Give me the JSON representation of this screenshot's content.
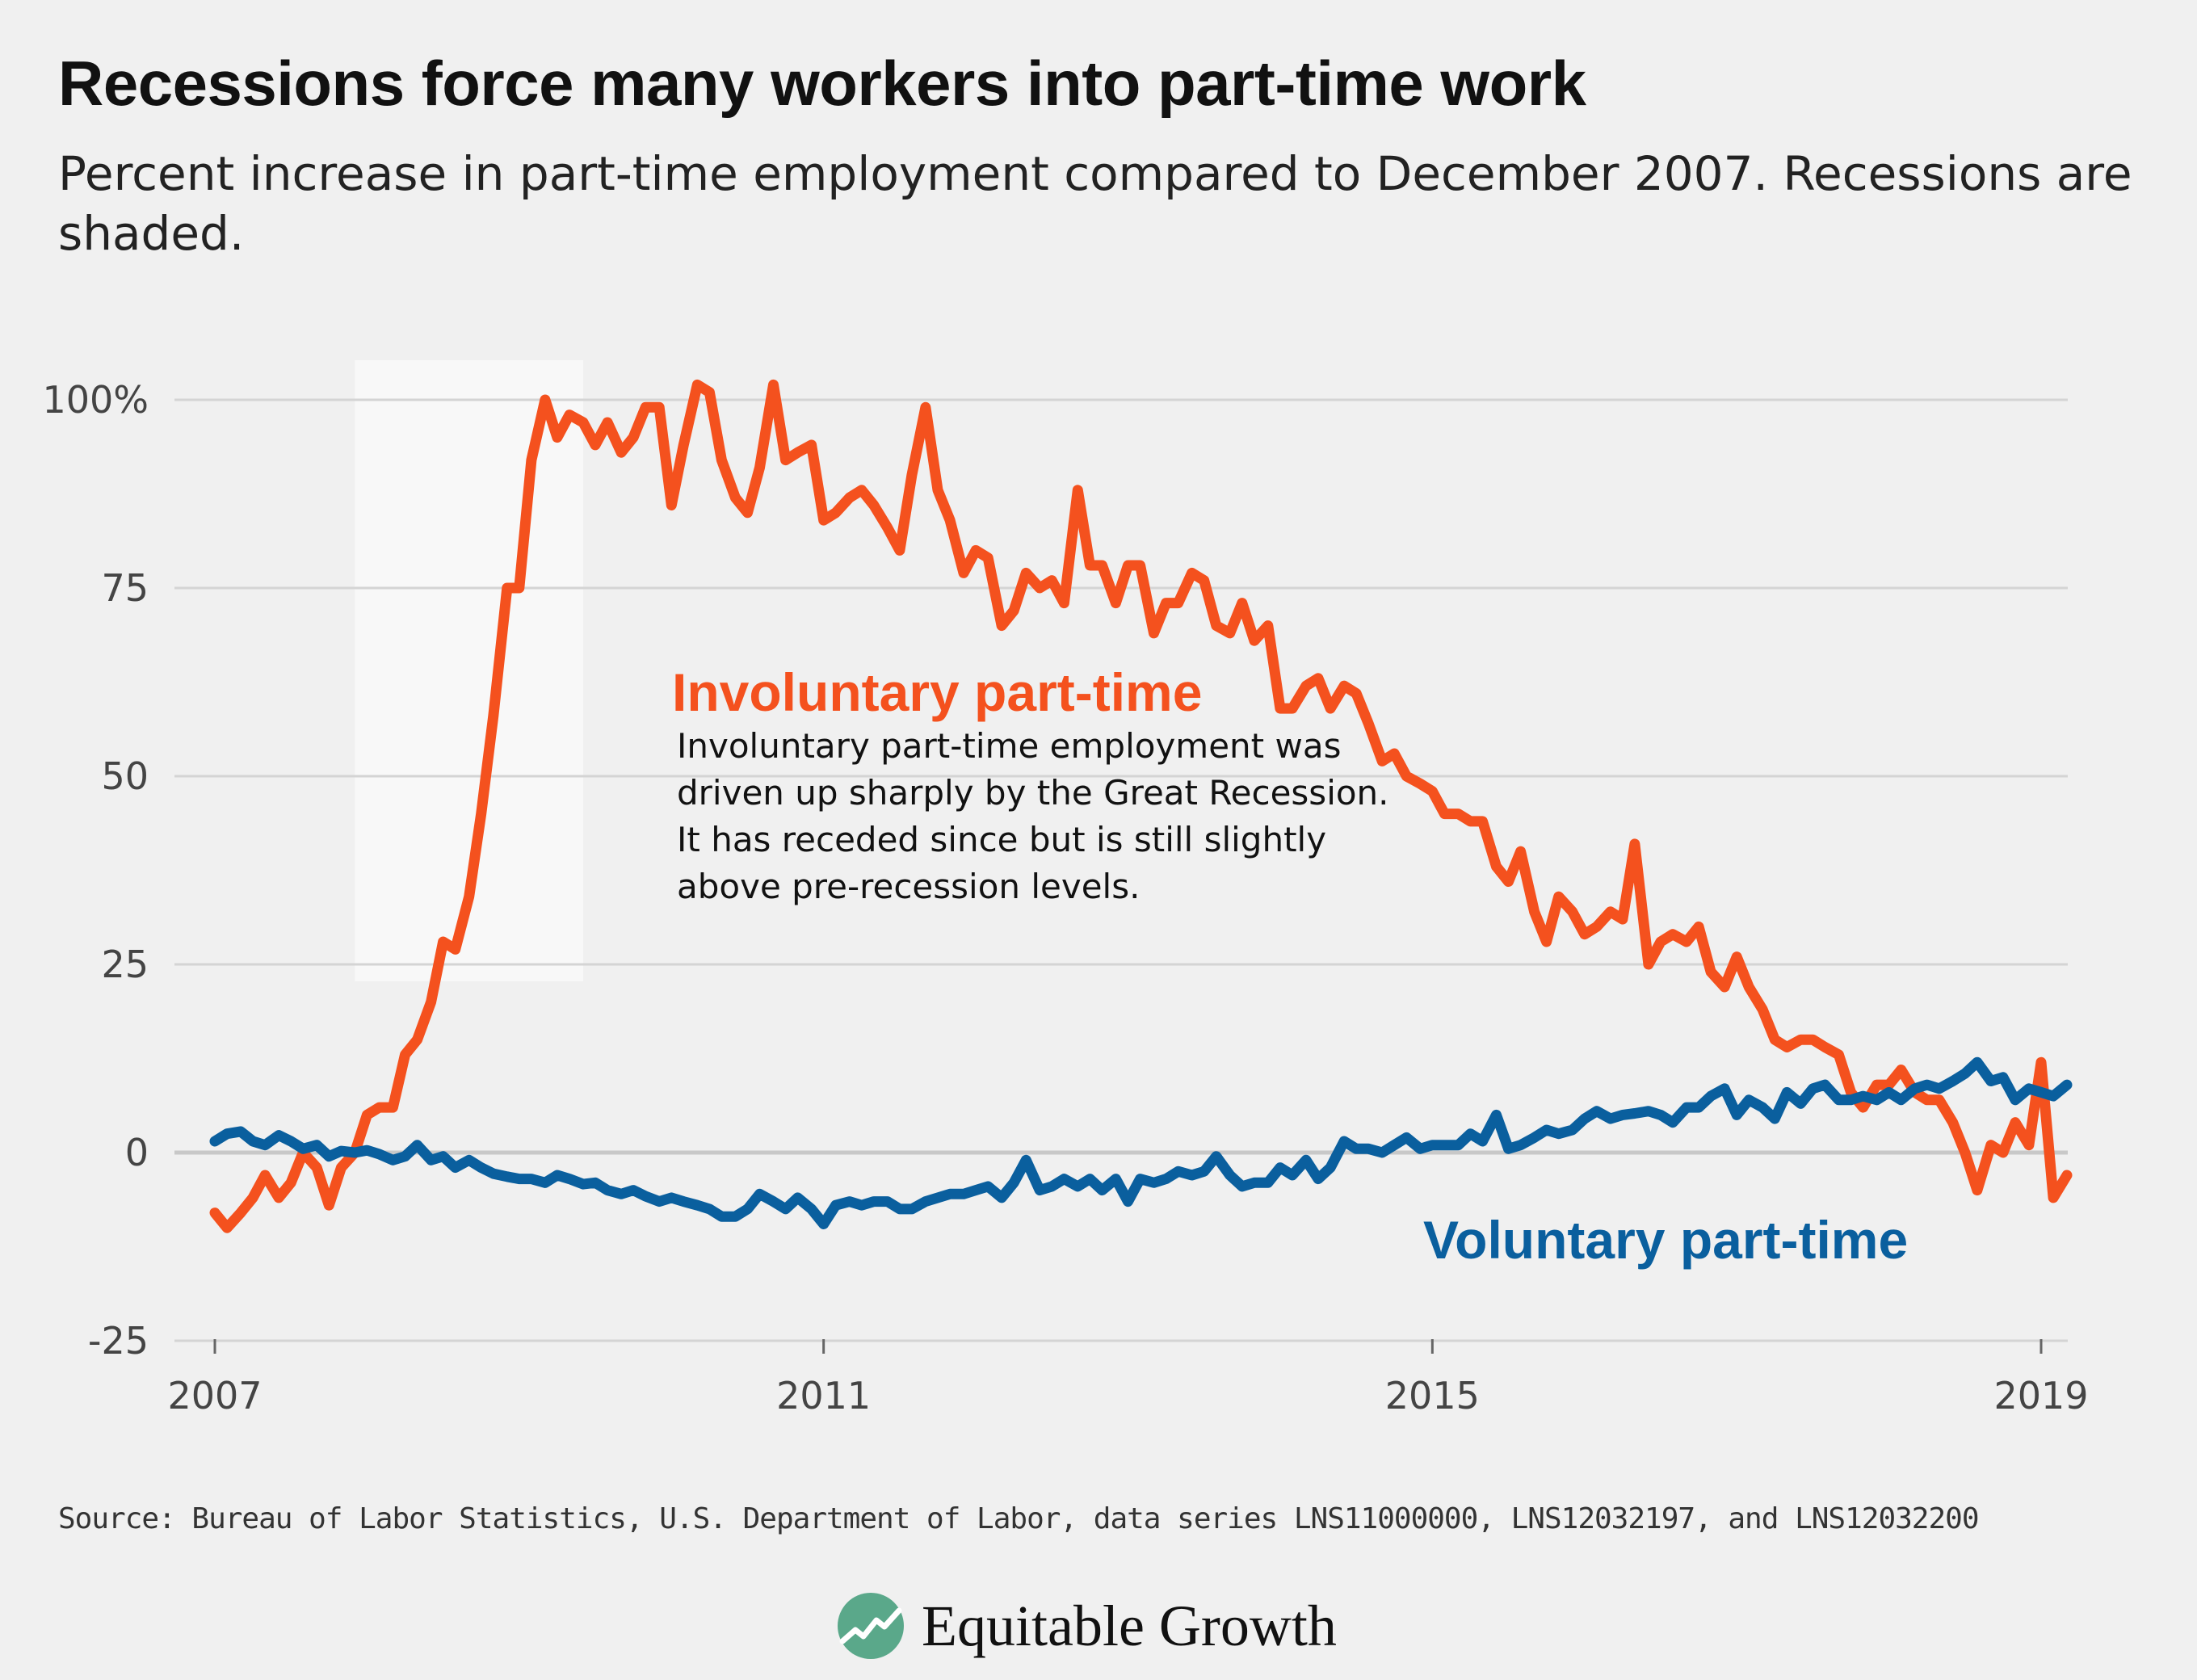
{
  "title": "Recessions force many workers into part-time work",
  "subtitle": "Percent increase in part-time employment compared to December 2007. Recessions are shaded.",
  "source": "Source: Bureau of Labor Statistics, U.S. Department of Labor, data series LNS11000000, LNS12032197, and LNS12032200",
  "brand": {
    "name": "Equitable Growth",
    "logo_icon": "equitable-growth-logo-icon",
    "logo_color": "#5aa88a"
  },
  "colors": {
    "involuntary": "#f4511e",
    "voluntary": "#0a5f9e",
    "background": "#f0f0f0",
    "recession": "#f8f8f8",
    "grid": "#d4d4d4",
    "zero_line": "#c8c8c8"
  },
  "chart_data": {
    "type": "line",
    "x_range": [
      2007.0,
      2019.2
    ],
    "ylim": [
      -25,
      100
    ],
    "y_ticks": [
      -25,
      0,
      25,
      50,
      75,
      100
    ],
    "y_tick_labels": [
      "-25",
      "0",
      "25",
      "50",
      "75",
      "100%"
    ],
    "x_ticks": [
      2007,
      2011,
      2015,
      2019
    ],
    "x_tick_labels": [
      "2007",
      "2011",
      "2015",
      "2019"
    ],
    "grid": true,
    "recession_shading": [
      [
        2007.92,
        2009.42
      ]
    ],
    "annotation": {
      "title": "Involuntary part-time",
      "lines": [
        "Involuntary part-time employment was",
        "driven up sharply by the Great Recession.",
        "It has receded since but is still slightly",
        "above pre-recession levels."
      ]
    },
    "series": [
      {
        "name": "Involuntary part-time",
        "color": "#f4511e",
        "points": [
          [
            2007.0,
            -8
          ],
          [
            2007.08,
            -10
          ],
          [
            2007.17,
            -8
          ],
          [
            2007.25,
            -6
          ],
          [
            2007.33,
            -3
          ],
          [
            2007.42,
            -6
          ],
          [
            2007.5,
            -4
          ],
          [
            2007.58,
            0
          ],
          [
            2007.67,
            -2
          ],
          [
            2007.75,
            -7
          ],
          [
            2007.83,
            -2
          ],
          [
            2007.92,
            0
          ],
          [
            2008.0,
            5
          ],
          [
            2008.08,
            6
          ],
          [
            2008.17,
            6
          ],
          [
            2008.25,
            13
          ],
          [
            2008.33,
            15
          ],
          [
            2008.42,
            20
          ],
          [
            2008.5,
            28
          ],
          [
            2008.58,
            27
          ],
          [
            2008.67,
            34
          ],
          [
            2008.75,
            45
          ],
          [
            2008.83,
            58
          ],
          [
            2008.92,
            75
          ],
          [
            2009.0,
            75
          ],
          [
            2009.08,
            92
          ],
          [
            2009.17,
            100
          ],
          [
            2009.25,
            95
          ],
          [
            2009.33,
            98
          ],
          [
            2009.42,
            97
          ],
          [
            2009.5,
            94
          ],
          [
            2009.58,
            97
          ],
          [
            2009.67,
            93
          ],
          [
            2009.75,
            95
          ],
          [
            2009.83,
            99
          ],
          [
            2009.92,
            99
          ],
          [
            2010.0,
            86
          ],
          [
            2010.08,
            94
          ],
          [
            2010.17,
            102
          ],
          [
            2010.25,
            101
          ],
          [
            2010.33,
            92
          ],
          [
            2010.42,
            87
          ],
          [
            2010.5,
            85
          ],
          [
            2010.58,
            91
          ],
          [
            2010.67,
            102
          ],
          [
            2010.75,
            92
          ],
          [
            2010.83,
            93
          ],
          [
            2010.92,
            94
          ],
          [
            2011.0,
            84
          ],
          [
            2011.08,
            85
          ],
          [
            2011.17,
            87
          ],
          [
            2011.25,
            88
          ],
          [
            2011.33,
            86
          ],
          [
            2011.42,
            83
          ],
          [
            2011.5,
            80
          ],
          [
            2011.58,
            90
          ],
          [
            2011.67,
            99
          ],
          [
            2011.75,
            88
          ],
          [
            2011.83,
            84
          ],
          [
            2011.92,
            77
          ],
          [
            2012.0,
            80
          ],
          [
            2012.08,
            79
          ],
          [
            2012.17,
            70
          ],
          [
            2012.25,
            72
          ],
          [
            2012.33,
            77
          ],
          [
            2012.42,
            75
          ],
          [
            2012.5,
            76
          ],
          [
            2012.58,
            73
          ],
          [
            2012.67,
            88
          ],
          [
            2012.75,
            78
          ],
          [
            2012.83,
            78
          ],
          [
            2012.92,
            73
          ],
          [
            2013.0,
            78
          ],
          [
            2013.08,
            78
          ],
          [
            2013.17,
            69
          ],
          [
            2013.25,
            73
          ],
          [
            2013.33,
            73
          ],
          [
            2013.42,
            77
          ],
          [
            2013.5,
            76
          ],
          [
            2013.58,
            70
          ],
          [
            2013.67,
            69
          ],
          [
            2013.75,
            73
          ],
          [
            2013.83,
            68
          ],
          [
            2013.92,
            70
          ],
          [
            2014.0,
            59
          ],
          [
            2014.08,
            59
          ],
          [
            2014.17,
            62
          ],
          [
            2014.25,
            63
          ],
          [
            2014.33,
            59
          ],
          [
            2014.42,
            62
          ],
          [
            2014.5,
            61
          ],
          [
            2014.58,
            57
          ],
          [
            2014.67,
            52
          ],
          [
            2014.75,
            53
          ],
          [
            2014.83,
            50
          ],
          [
            2014.92,
            49
          ],
          [
            2015.0,
            48
          ],
          [
            2015.08,
            45
          ],
          [
            2015.17,
            45
          ],
          [
            2015.25,
            44
          ],
          [
            2015.33,
            44
          ],
          [
            2015.42,
            38
          ],
          [
            2015.5,
            36
          ],
          [
            2015.58,
            40
          ],
          [
            2015.67,
            32
          ],
          [
            2015.75,
            28
          ],
          [
            2015.83,
            34
          ],
          [
            2015.92,
            32
          ],
          [
            2016.0,
            29
          ],
          [
            2016.08,
            30
          ],
          [
            2016.17,
            32
          ],
          [
            2016.25,
            31
          ],
          [
            2016.33,
            41
          ],
          [
            2016.42,
            25
          ],
          [
            2016.5,
            28
          ],
          [
            2016.58,
            29
          ],
          [
            2016.67,
            28
          ],
          [
            2016.75,
            30
          ],
          [
            2016.83,
            24
          ],
          [
            2016.92,
            22
          ],
          [
            2017.0,
            26
          ],
          [
            2017.08,
            22
          ],
          [
            2017.17,
            19
          ],
          [
            2017.25,
            15
          ],
          [
            2017.33,
            14
          ],
          [
            2017.42,
            15
          ],
          [
            2017.5,
            15
          ],
          [
            2017.58,
            14
          ],
          [
            2017.67,
            13
          ],
          [
            2017.75,
            8
          ],
          [
            2017.83,
            6
          ],
          [
            2017.92,
            9
          ],
          [
            2018.0,
            9
          ],
          [
            2018.08,
            11
          ],
          [
            2018.17,
            8
          ],
          [
            2018.25,
            7
          ],
          [
            2018.33,
            7
          ],
          [
            2018.42,
            4
          ],
          [
            2018.5,
            0
          ],
          [
            2018.58,
            -5
          ],
          [
            2018.67,
            1
          ],
          [
            2018.75,
            0
          ],
          [
            2018.83,
            4
          ],
          [
            2018.92,
            1
          ],
          [
            2019.0,
            12
          ],
          [
            2019.08,
            -6
          ],
          [
            2019.17,
            -3
          ]
        ]
      },
      {
        "name": "Voluntary part-time",
        "color": "#0a5f9e",
        "points": [
          [
            2007.0,
            1.5
          ],
          [
            2007.08,
            2.5
          ],
          [
            2007.17,
            2.8
          ],
          [
            2007.25,
            1.5
          ],
          [
            2007.33,
            1.0
          ],
          [
            2007.42,
            2.3
          ],
          [
            2007.5,
            1.5
          ],
          [
            2007.58,
            0.5
          ],
          [
            2007.67,
            1.0
          ],
          [
            2007.75,
            -0.5
          ],
          [
            2007.83,
            0.2
          ],
          [
            2007.92,
            0
          ],
          [
            2008.0,
            0.3
          ],
          [
            2008.08,
            -0.2
          ],
          [
            2008.17,
            -1.0
          ],
          [
            2008.25,
            -0.5
          ],
          [
            2008.33,
            1.0
          ],
          [
            2008.42,
            -1.0
          ],
          [
            2008.5,
            -0.5
          ],
          [
            2008.58,
            -2.0
          ],
          [
            2008.67,
            -1.0
          ],
          [
            2008.75,
            -2.0
          ],
          [
            2008.83,
            -2.8
          ],
          [
            2008.92,
            -3.2
          ],
          [
            2009.0,
            -3.5
          ],
          [
            2009.08,
            -3.5
          ],
          [
            2009.17,
            -4.0
          ],
          [
            2009.25,
            -3.0
          ],
          [
            2009.33,
            -3.5
          ],
          [
            2009.42,
            -4.2
          ],
          [
            2009.5,
            -4.0
          ],
          [
            2009.58,
            -5.0
          ],
          [
            2009.67,
            -5.5
          ],
          [
            2009.75,
            -5.0
          ],
          [
            2009.83,
            -5.8
          ],
          [
            2009.92,
            -6.5
          ],
          [
            2010.0,
            -6.0
          ],
          [
            2010.08,
            -6.5
          ],
          [
            2010.17,
            -7.0
          ],
          [
            2010.25,
            -7.5
          ],
          [
            2010.33,
            -8.5
          ],
          [
            2010.42,
            -8.5
          ],
          [
            2010.5,
            -7.5
          ],
          [
            2010.58,
            -5.5
          ],
          [
            2010.67,
            -6.5
          ],
          [
            2010.75,
            -7.5
          ],
          [
            2010.83,
            -6.0
          ],
          [
            2010.92,
            -7.5
          ],
          [
            2011.0,
            -9.5
          ],
          [
            2011.08,
            -7.0
          ],
          [
            2011.17,
            -6.5
          ],
          [
            2011.25,
            -7.0
          ],
          [
            2011.33,
            -6.5
          ],
          [
            2011.42,
            -6.5
          ],
          [
            2011.5,
            -7.5
          ],
          [
            2011.58,
            -7.5
          ],
          [
            2011.67,
            -6.5
          ],
          [
            2011.75,
            -6.0
          ],
          [
            2011.83,
            -5.5
          ],
          [
            2011.92,
            -5.5
          ],
          [
            2012.0,
            -5.0
          ],
          [
            2012.08,
            -4.5
          ],
          [
            2012.17,
            -6.0
          ],
          [
            2012.25,
            -4.0
          ],
          [
            2012.33,
            -1.0
          ],
          [
            2012.42,
            -5.0
          ],
          [
            2012.5,
            -4.5
          ],
          [
            2012.58,
            -3.5
          ],
          [
            2012.67,
            -4.5
          ],
          [
            2012.75,
            -3.5
          ],
          [
            2012.83,
            -5.0
          ],
          [
            2012.92,
            -3.5
          ],
          [
            2013.0,
            -6.5
          ],
          [
            2013.08,
            -3.5
          ],
          [
            2013.17,
            -4.0
          ],
          [
            2013.25,
            -3.5
          ],
          [
            2013.33,
            -2.5
          ],
          [
            2013.42,
            -3.0
          ],
          [
            2013.5,
            -2.5
          ],
          [
            2013.58,
            -0.5
          ],
          [
            2013.67,
            -3.0
          ],
          [
            2013.75,
            -4.5
          ],
          [
            2013.83,
            -4.0
          ],
          [
            2013.92,
            -4.0
          ],
          [
            2014.0,
            -2.0
          ],
          [
            2014.08,
            -3.0
          ],
          [
            2014.17,
            -1.0
          ],
          [
            2014.25,
            -3.5
          ],
          [
            2014.33,
            -2.0
          ],
          [
            2014.42,
            1.5
          ],
          [
            2014.5,
            0.5
          ],
          [
            2014.58,
            0.5
          ],
          [
            2014.67,
            0
          ],
          [
            2014.75,
            1.0
          ],
          [
            2014.83,
            2.0
          ],
          [
            2014.92,
            0.5
          ],
          [
            2015.0,
            1.0
          ],
          [
            2015.08,
            1.0
          ],
          [
            2015.17,
            1.0
          ],
          [
            2015.25,
            2.5
          ],
          [
            2015.33,
            1.5
          ],
          [
            2015.42,
            5.0
          ],
          [
            2015.5,
            0.5
          ],
          [
            2015.58,
            1.0
          ],
          [
            2015.67,
            2.0
          ],
          [
            2015.75,
            3.0
          ],
          [
            2015.83,
            2.5
          ],
          [
            2015.92,
            3.0
          ],
          [
            2016.0,
            4.5
          ],
          [
            2016.08,
            5.5
          ],
          [
            2016.17,
            4.5
          ],
          [
            2016.25,
            5.0
          ],
          [
            2016.33,
            5.2
          ],
          [
            2016.42,
            5.5
          ],
          [
            2016.5,
            5.0
          ],
          [
            2016.58,
            4.0
          ],
          [
            2016.67,
            6.0
          ],
          [
            2016.75,
            6.0
          ],
          [
            2016.83,
            7.5
          ],
          [
            2016.92,
            8.5
          ],
          [
            2017.0,
            5.0
          ],
          [
            2017.08,
            7.0
          ],
          [
            2017.17,
            6.0
          ],
          [
            2017.25,
            4.5
          ],
          [
            2017.33,
            8.0
          ],
          [
            2017.42,
            6.5
          ],
          [
            2017.5,
            8.5
          ],
          [
            2017.58,
            9.0
          ],
          [
            2017.67,
            7.0
          ],
          [
            2017.75,
            7.0
          ],
          [
            2017.83,
            7.5
          ],
          [
            2017.92,
            7.0
          ],
          [
            2018.0,
            8.0
          ],
          [
            2018.08,
            7.0
          ],
          [
            2018.17,
            8.5
          ],
          [
            2018.25,
            9.0
          ],
          [
            2018.33,
            8.5
          ],
          [
            2018.42,
            9.5
          ],
          [
            2018.5,
            10.5
          ],
          [
            2018.58,
            12.0
          ],
          [
            2018.67,
            9.5
          ],
          [
            2018.75,
            10.0
          ],
          [
            2018.83,
            7.0
          ],
          [
            2018.92,
            8.5
          ],
          [
            2019.0,
            8.0
          ],
          [
            2019.08,
            7.5
          ],
          [
            2019.17,
            9.0
          ]
        ]
      }
    ]
  }
}
